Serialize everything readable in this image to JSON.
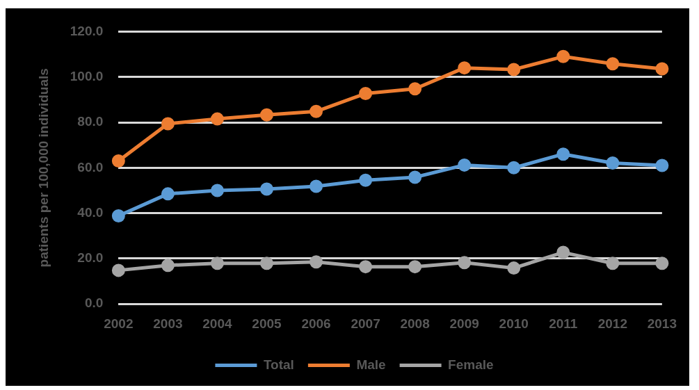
{
  "chart_data": {
    "type": "line",
    "ylabel": "patients per 100,000 individuals",
    "categories": [
      "2002",
      "2003",
      "2004",
      "2005",
      "2006",
      "2007",
      "2008",
      "2009",
      "2010",
      "2011",
      "2012",
      "2013"
    ],
    "series": [
      {
        "name": "Total",
        "color": "#5b9bd5",
        "values": [
          38.8,
          48.5,
          50,
          50.6,
          51.8,
          54.5,
          55.8,
          61.2,
          60,
          66,
          62.1,
          61
        ]
      },
      {
        "name": "Male",
        "color": "#ed7d31",
        "values": [
          63,
          79.4,
          81.5,
          83.3,
          84.8,
          92.7,
          94.8,
          104,
          103.3,
          109,
          105.8,
          103.6
        ]
      },
      {
        "name": "Female",
        "color": "#a5a5a5",
        "values": [
          14.8,
          17,
          17.9,
          17.9,
          18.5,
          16.4,
          16.4,
          18.2,
          15.8,
          22.7,
          17.9,
          17.9
        ]
      }
    ],
    "ylim": [
      0,
      120
    ],
    "yticks": [
      {
        "value": 0,
        "label": "0.0"
      },
      {
        "value": 20,
        "label": "20.0"
      },
      {
        "value": 40,
        "label": "40.0"
      },
      {
        "value": 60,
        "label": "60.0"
      },
      {
        "value": 80,
        "label": "80.0"
      },
      {
        "value": 100,
        "label": "100.0"
      },
      {
        "value": 120,
        "label": "120.0"
      }
    ],
    "grid": "y",
    "legend": "bottom",
    "marker": "circle",
    "line_style": "solid"
  }
}
